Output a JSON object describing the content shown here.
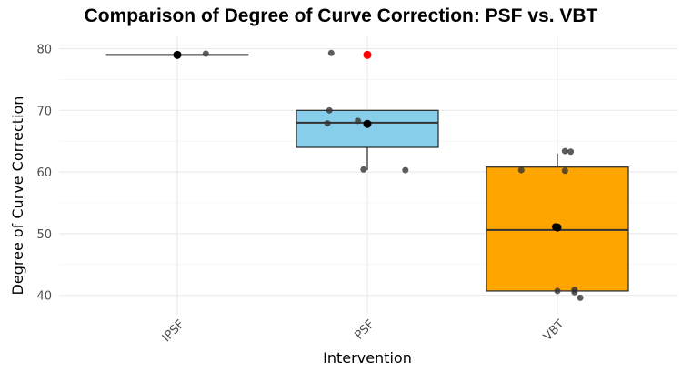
{
  "chart_data": {
    "type": "boxplot",
    "title": "Comparison of Degree of Curve Correction: PSF vs. VBT",
    "xlabel": "Intervention",
    "ylabel": "Degree of Curve Correction",
    "ylim": [
      37,
      82
    ],
    "yticks": [
      40,
      50,
      60,
      70,
      80
    ],
    "categories": [
      "IPSF",
      "PSF",
      "VBT"
    ],
    "boxes": [
      {
        "name": "IPSF",
        "fill": "#ffffff",
        "q1": 79,
        "median": 79,
        "q3": 79,
        "whisker_low": 79,
        "whisker_high": 79
      },
      {
        "name": "PSF",
        "fill": "#87ceeb",
        "q1": 64,
        "median": 68,
        "q3": 70,
        "whisker_low": 60.3,
        "whisker_high": 70
      },
      {
        "name": "VBT",
        "fill": "#ffa500",
        "q1": 40.7,
        "median": 50.6,
        "q3": 60.8,
        "whisker_low": 40.7,
        "whisker_high": 63
      }
    ],
    "points": [
      {
        "category": "IPSF",
        "jitter": 0.0,
        "y": 79.0,
        "color": "#000000",
        "size": 4.5
      },
      {
        "category": "IPSF",
        "jitter": 0.15,
        "y": 79.2,
        "color": "#333333",
        "size": 3.5
      },
      {
        "category": "PSF",
        "jitter": -0.19,
        "y": 79.3,
        "color": "#333333",
        "size": 3.5
      },
      {
        "category": "PSF",
        "jitter": 0.0,
        "y": 79.0,
        "color": "#ff0000",
        "size": 4.5
      },
      {
        "category": "PSF",
        "jitter": -0.2,
        "y": 70.0,
        "color": "#333333",
        "size": 3.5
      },
      {
        "category": "PSF",
        "jitter": -0.05,
        "y": 68.3,
        "color": "#333333",
        "size": 3.5
      },
      {
        "category": "PSF",
        "jitter": -0.21,
        "y": 67.9,
        "color": "#333333",
        "size": 3.5
      },
      {
        "category": "PSF",
        "jitter": 0.0,
        "y": 67.8,
        "color": "#000000",
        "size": 4.5
      },
      {
        "category": "PSF",
        "jitter": -0.02,
        "y": 60.4,
        "color": "#333333",
        "size": 3.5
      },
      {
        "category": "PSF",
        "jitter": 0.2,
        "y": 60.3,
        "color": "#333333",
        "size": 3.5
      },
      {
        "category": "VBT",
        "jitter": 0.04,
        "y": 63.4,
        "color": "#333333",
        "size": 3.5
      },
      {
        "category": "VBT",
        "jitter": 0.07,
        "y": 63.3,
        "color": "#333333",
        "size": 3.5
      },
      {
        "category": "VBT",
        "jitter": -0.19,
        "y": 60.3,
        "color": "#333333",
        "size": 3.5
      },
      {
        "category": "VBT",
        "jitter": 0.04,
        "y": 60.2,
        "color": "#333333",
        "size": 3.5
      },
      {
        "category": "VBT",
        "jitter": 0.0,
        "y": 51.0,
        "color": "#000000",
        "size": 4.5
      },
      {
        "category": "VBT",
        "jitter": -0.01,
        "y": 51.1,
        "color": "#000000",
        "size": 4.0
      },
      {
        "category": "VBT",
        "jitter": 0.0,
        "y": 40.7,
        "color": "#333333",
        "size": 3.5
      },
      {
        "category": "VBT",
        "jitter": 0.09,
        "y": 40.9,
        "color": "#333333",
        "size": 3.5
      },
      {
        "category": "VBT",
        "jitter": 0.09,
        "y": 40.5,
        "color": "#333333",
        "size": 3.5
      },
      {
        "category": "VBT",
        "jitter": 0.12,
        "y": 39.6,
        "color": "#333333",
        "size": 3.5
      }
    ]
  }
}
